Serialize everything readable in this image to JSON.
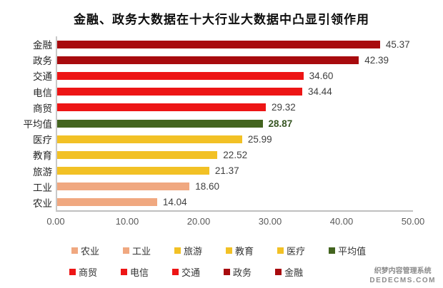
{
  "chart_data": {
    "type": "bar",
    "orientation": "horizontal",
    "title": "金融、政务大数据在十大行业大数据中凸显引领作用",
    "categories": [
      "金融",
      "政务",
      "交通",
      "电信",
      "商贸",
      "平均值",
      "医疗",
      "教育",
      "旅游",
      "工业",
      "农业"
    ],
    "values": [
      45.37,
      42.39,
      34.6,
      34.44,
      29.32,
      28.87,
      25.99,
      22.52,
      21.37,
      18.6,
      14.04
    ],
    "value_labels": [
      "45.37",
      "42.39",
      "34.60",
      "34.44",
      "29.32",
      "28.87",
      "25.99",
      "22.52",
      "21.37",
      "18.60",
      "14.04"
    ],
    "bar_colors": [
      "#A80B0E",
      "#A80B0E",
      "#ED1515",
      "#ED1515",
      "#ED1515",
      "#43641F",
      "#F2C125",
      "#F2C125",
      "#F2C125",
      "#F0A880",
      "#F0A880"
    ],
    "xlim": [
      0,
      50
    ],
    "x_ticks": [
      "0.00",
      "10.00",
      "20.00",
      "30.00",
      "40.00",
      "50.00"
    ],
    "grid": false,
    "legend_position": "bottom",
    "emphasized_category": "平均值",
    "legend_rows": [
      [
        {
          "label": "农业",
          "color": "#F0A880"
        },
        {
          "label": "工业",
          "color": "#F0A880"
        },
        {
          "label": "旅游",
          "color": "#F2C125"
        },
        {
          "label": "教育",
          "color": "#F2C125"
        },
        {
          "label": "医疗",
          "color": "#F2C125"
        },
        {
          "label": "平均值",
          "color": "#43641F"
        }
      ],
      [
        {
          "label": "商贸",
          "color": "#ED1515"
        },
        {
          "label": "电信",
          "color": "#ED1515"
        },
        {
          "label": "交通",
          "color": "#ED1515"
        },
        {
          "label": "政务",
          "color": "#A80B0E"
        },
        {
          "label": "金融",
          "color": "#A80B0E"
        }
      ]
    ]
  },
  "colors": {
    "dark_red": "#A80B0E",
    "red": "#ED1515",
    "dark_green": "#43641F",
    "gold": "#F2C125",
    "salmon": "#F0A880",
    "value_text": "#404040",
    "avg_value_text": "#375623",
    "axis_line": "#BFBFBF"
  },
  "watermark": {
    "line1": "织梦内容管理系统",
    "line2": "DEDECMS.COM"
  }
}
